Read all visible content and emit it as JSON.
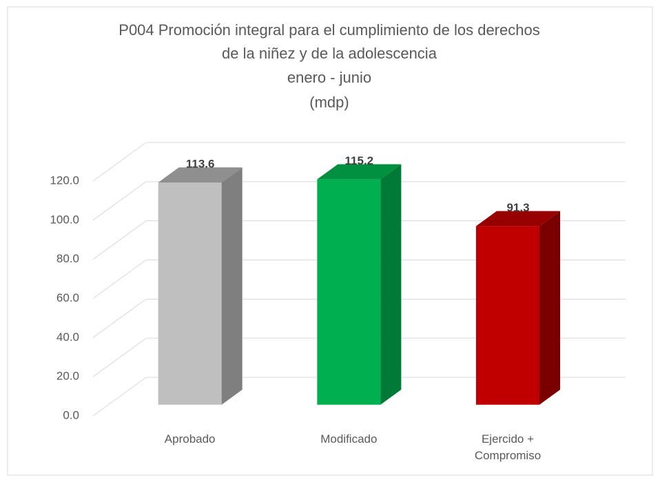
{
  "chart_data": {
    "type": "bar3d",
    "title": [
      "P004 Promoción integral para el cumplimiento de los derechos",
      "de la niñez y de la adolescencia",
      "enero - junio",
      "(mdp)"
    ],
    "categories": [
      "Aprobado",
      "Modificado",
      "Ejercido + Compromiso"
    ],
    "values": [
      113.6,
      115.2,
      91.3
    ],
    "colors": [
      "#bfbfbf",
      "#00b050",
      "#c00000"
    ],
    "side_colors": [
      "#7f7f7f",
      "#007a36",
      "#7a0000"
    ],
    "top_colors": [
      "#8f8f8f",
      "#00903f",
      "#960000"
    ],
    "ylim": [
      0,
      120
    ],
    "yticks": [
      {
        "value": 0,
        "label": "0.0"
      },
      {
        "value": 20,
        "label": "20.0"
      },
      {
        "value": 40,
        "label": "40.0"
      },
      {
        "value": 60,
        "label": "60.0"
      },
      {
        "value": 80,
        "label": "80.0"
      },
      {
        "value": 100,
        "label": "100.0"
      },
      {
        "value": 120,
        "label": "120.0"
      }
    ],
    "grid": true
  }
}
